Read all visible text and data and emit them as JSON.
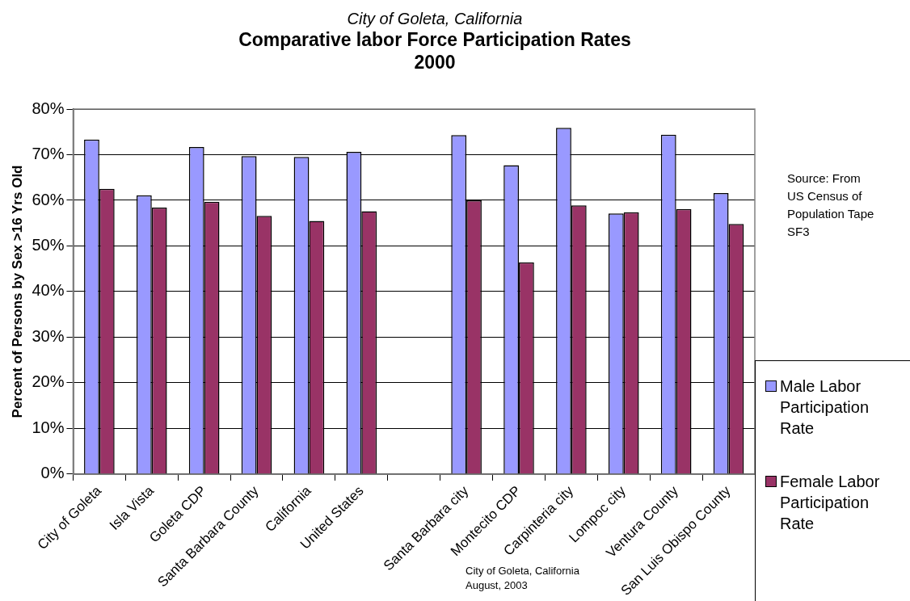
{
  "chart_data": {
    "type": "bar",
    "subtitle": "City of Goleta, California",
    "title": "Comparative labor Force Participation Rates\n2000",
    "ylabel": "Percent of Persons by Sex >16 Yrs Old",
    "categories": [
      "City of Goleta",
      "Isla Vista",
      "Goleta CDP",
      "Santa Barbara County",
      "California",
      "United States",
      null,
      "Santa Barbara city",
      "Montecito CDP",
      "Carpinteria city",
      "Lompoc city",
      "Ventura County",
      "San Luis Obispo County"
    ],
    "series": [
      {
        "name": "Male Labor Participation Rate",
        "color": "#9999ff",
        "values": [
          73.3,
          61.1,
          71.7,
          69.7,
          69.5,
          70.6,
          null,
          74.3,
          67.7,
          75.9,
          57.1,
          74.4,
          61.6
        ]
      },
      {
        "name": "Female Labor Participation Rate",
        "color": "#993366",
        "values": [
          62.5,
          58.4,
          59.7,
          56.6,
          55.5,
          57.6,
          null,
          60.0,
          46.4,
          58.9,
          57.4,
          58.1,
          54.8
        ]
      }
    ],
    "ylim": [
      0,
      80
    ],
    "yticks": [
      {
        "value": 0,
        "label": "0%"
      },
      {
        "value": 10,
        "label": "10%"
      },
      {
        "value": 20,
        "label": "20%"
      },
      {
        "value": 30,
        "label": "30%"
      },
      {
        "value": 40,
        "label": "40%"
      },
      {
        "value": 50,
        "label": "50%"
      },
      {
        "value": 60,
        "label": "60%"
      },
      {
        "value": 70,
        "label": "70%"
      },
      {
        "value": 80,
        "label": "80%"
      }
    ],
    "grid": "y",
    "legend": "right",
    "annotations": [
      "Source: From US Census of Population Tape SF3",
      "City of Goleta, California\nAugust, 2003"
    ]
  }
}
